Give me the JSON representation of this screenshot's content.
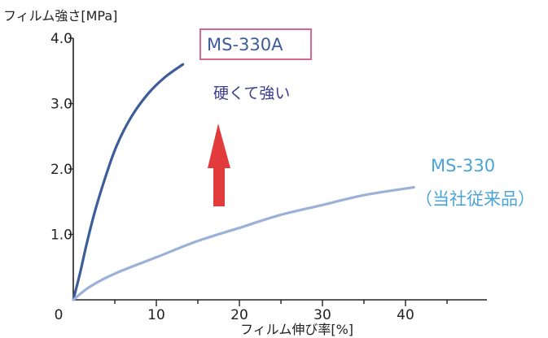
{
  "chart_data": {
    "type": "line",
    "ylabel": "フィルム強さ[MPa]",
    "xlabel": "フィルム伸び率[%]",
    "xlim": [
      0,
      50
    ],
    "ylim": [
      0,
      4.0
    ],
    "x_ticks": [
      0,
      10,
      20,
      30,
      40
    ],
    "x_tick_labels": [
      "0",
      "10",
      "20",
      "30",
      "40"
    ],
    "y_ticks": [
      1.0,
      2.0,
      3.0,
      4.0
    ],
    "y_tick_labels": [
      "1.0",
      "2.0",
      "3.0",
      "4.0"
    ],
    "grid": false,
    "series": [
      {
        "name": "MS-330A",
        "color": "#3d5c99",
        "x": [
          0,
          0.8,
          1.6,
          2.6,
          3.8,
          5.2,
          7.0,
          9.0,
          11.0,
          13.2
        ],
        "y": [
          0,
          0.4,
          0.85,
          1.35,
          1.85,
          2.35,
          2.8,
          3.15,
          3.4,
          3.6
        ]
      },
      {
        "name": "MS-330（当社従来品）",
        "color": "#9bb1d8",
        "x": [
          0,
          2,
          5,
          10,
          15,
          20,
          25,
          30,
          35,
          41
        ],
        "y": [
          0,
          0.2,
          0.4,
          0.65,
          0.9,
          1.1,
          1.3,
          1.45,
          1.6,
          1.72
        ]
      }
    ],
    "annotations": {
      "label_330a": "MS-330A",
      "hard_strong": "硬くて強い",
      "label_330_line1": "MS-330",
      "label_330_line2": "（当社従来品）"
    },
    "colors": {
      "box_border": "#d9668c",
      "arrow": "#e23b3b",
      "hard_strong_text": "#3d3d8f",
      "label_330_text": "#4aa5d6"
    }
  }
}
